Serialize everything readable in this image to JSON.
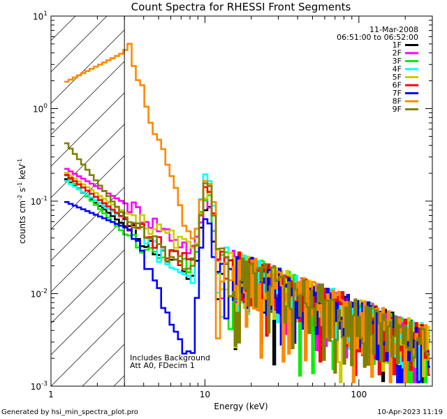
{
  "chart_data": {
    "type": "line",
    "title": "Count Spectra for RHESSI Front Segments",
    "xlabel": "Energy (keV)",
    "ylabel": "counts cm-2 s-1 keV-1",
    "xscale": "log",
    "yscale": "log",
    "xlim": [
      1,
      300
    ],
    "ylim": [
      0.001,
      10
    ],
    "x_ticks": [
      {
        "value": 1,
        "label": "1"
      },
      {
        "value": 10,
        "label": "10"
      },
      {
        "value": 100,
        "label": "100"
      }
    ],
    "y_ticks": [
      {
        "value": 10,
        "base": "10",
        "exp": "1"
      },
      {
        "value": 1,
        "base": "10",
        "exp": "0"
      },
      {
        "value": 0.1,
        "base": "10",
        "exp": "-1"
      },
      {
        "value": 0.01,
        "base": "10",
        "exp": "-2"
      },
      {
        "value": 0.001,
        "base": "10",
        "exp": "-3"
      }
    ],
    "date": "11-Mar-2008",
    "time_range": "06:51:00 to 06:52:00",
    "shaded_region": {
      "x_start": 1,
      "x_end": 3
    },
    "annotation_lines": [
      "Includes Background",
      "Att A0, FDecim 1"
    ],
    "series": [
      {
        "name": "1F",
        "color": "#000000",
        "low_start": 0.18,
        "low_end": 0.05,
        "dip": 0.015,
        "peak": 0.09
      },
      {
        "name": "2F",
        "color": "#ff00ff",
        "low_start": 0.23,
        "low_end": 0.09,
        "dip": 0.03,
        "peak": 0.1
      },
      {
        "name": "3F",
        "color": "#00ee00",
        "low_start": 0.2,
        "low_end": 0.04,
        "dip": 0.02,
        "peak": 0.12
      },
      {
        "name": "4F",
        "color": "#00ffff",
        "low_start": 0.17,
        "low_end": 0.06,
        "dip": 0.012,
        "peak": 0.2
      },
      {
        "name": "5F",
        "color": "#cccc00",
        "low_start": 0.21,
        "low_end": 0.07,
        "dip": 0.03,
        "peak": 0.13
      },
      {
        "name": "6F",
        "color": "#ff0000",
        "low_start": 0.2,
        "low_end": 0.06,
        "dip": 0.02,
        "peak": 0.15
      },
      {
        "name": "7F",
        "color": "#0000ff",
        "low_start": 0.1,
        "low_end": 0.05,
        "dip": 0.002,
        "peak": 0.06
      },
      {
        "name": "8F",
        "color": "#ff8800",
        "low_start": 1.9,
        "low_end": 4.3,
        "dip": 0.04,
        "peak": 0.18
      },
      {
        "name": "9F",
        "color": "#808000",
        "low_start": 0.45,
        "low_end": 0.06,
        "dip": 0.018,
        "peak": 0.15
      }
    ]
  },
  "footer": {
    "generated_by": "Generated by hsi_min_spectra_plot.pro",
    "date_time": "10-Apr-2023 11:19"
  }
}
